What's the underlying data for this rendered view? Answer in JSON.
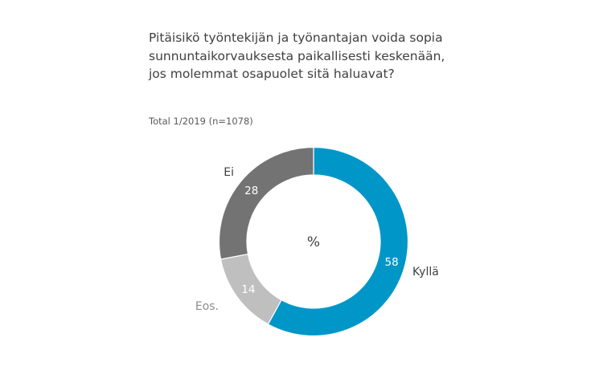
{
  "chart_data": {
    "type": "pie",
    "donut": true,
    "title": "Pitäisikö työntekijän ja työnantajan voida sopia sunnuntaikorvauksesta paikallisesti keskenään, jos molemmat osapuolet sitä haluavat?",
    "subtitle": "Total 1/2019 (n=1078)",
    "center_label": "%",
    "slices": [
      {
        "label": "Kyllä",
        "value": 58,
        "color": "#0096C8",
        "label_color": "#404040"
      },
      {
        "label": "Eos.",
        "value": 14,
        "color": "#BFBFBF",
        "label_color": "#8C8C8C"
      },
      {
        "label": "Ei",
        "value": 28,
        "color": "#737373",
        "label_color": "#404040"
      }
    ]
  }
}
